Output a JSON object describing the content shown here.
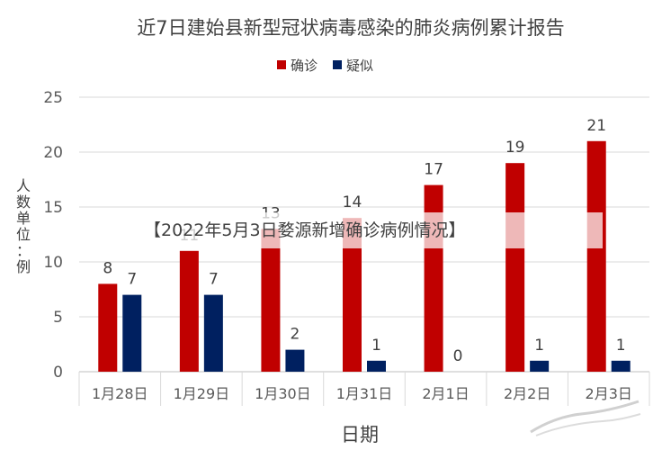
{
  "chart_data": {
    "type": "bar",
    "title": "近7日建始县新型冠状病毒感染的肺炎病例累计报告",
    "categories": [
      "1月28日",
      "1月29日",
      "1月30日",
      "1月31日",
      "2月1日",
      "2月2日",
      "2月3日"
    ],
    "series": [
      {
        "name": "确诊",
        "color": "#c00000",
        "values": [
          8,
          11,
          13,
          14,
          17,
          19,
          21
        ]
      },
      {
        "name": "疑似",
        "color": "#002060",
        "values": [
          7,
          7,
          2,
          1,
          0,
          1,
          1
        ]
      }
    ],
    "xlabel": "日期",
    "ylabel": "人数单位：例",
    "ylim": [
      0,
      25
    ],
    "yticks": [
      0,
      5,
      10,
      15,
      20,
      25
    ],
    "grid": true,
    "legend": "top-center"
  },
  "overlay_text": "【2022年5月3日婺源新增确诊病例情况】"
}
